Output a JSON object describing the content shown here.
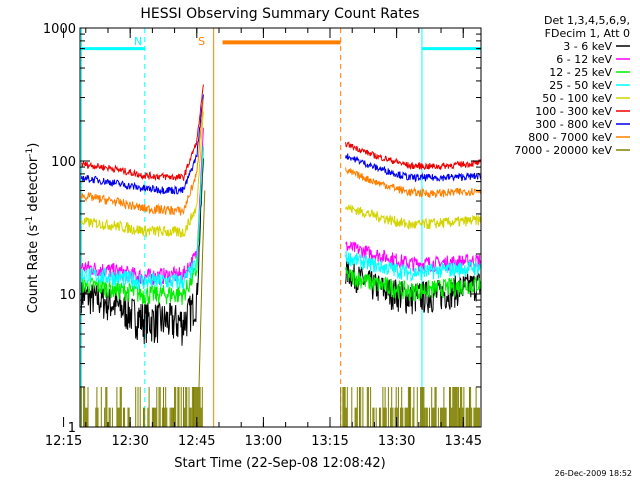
{
  "chart_data": {
    "type": "line",
    "title": "HESSI Observing Summary Count Rates",
    "xlabel": "Start Time (22-Sep-08 12:08:42)",
    "ylabel_main": "Count Rate (s",
    "ylabel_sup1": "-1",
    "ylabel_mid": " detector",
    "ylabel_sup2": "-1",
    "ylabel_end": ")",
    "yscale": "log",
    "ylim": [
      1,
      1000
    ],
    "xlim_minutes": [
      738.7,
      829
    ],
    "y_ticks": [
      {
        "value": 1,
        "label": "1"
      },
      {
        "value": 10,
        "label": "10"
      },
      {
        "value": 100,
        "label": "100"
      },
      {
        "value": 1000,
        "label": "1000"
      }
    ],
    "x_ticks": [
      {
        "minutes": 735,
        "label": "12:15"
      },
      {
        "minutes": 750,
        "label": "12:30"
      },
      {
        "minutes": 765,
        "label": "12:45"
      },
      {
        "minutes": 780,
        "label": "13:00"
      },
      {
        "minutes": 795,
        "label": "13:15"
      },
      {
        "minutes": 810,
        "label": "13:30"
      },
      {
        "minutes": 825,
        "label": "13:45"
      }
    ],
    "legend": {
      "placement": "right",
      "header": [
        "Det 1,3,4,5,6,9,",
        "FDecim 1, Att 0"
      ],
      "entries": [
        {
          "label": "3 - 6 keV",
          "color": "#000000"
        },
        {
          "label": "6 - 12 keV",
          "color": "#ff00ff"
        },
        {
          "label": "12 - 25 keV",
          "color": "#00ee00"
        },
        {
          "label": "25 - 50 keV",
          "color": "#00ffff"
        },
        {
          "label": "50 - 100 keV",
          "color": "#d4d400"
        },
        {
          "label": "100 - 300 keV",
          "color": "#ee0000"
        },
        {
          "label": "300 - 800 keV",
          "color": "#0000ee"
        },
        {
          "label": "800 - 7000 keV",
          "color": "#ff8000"
        },
        {
          "label": "7000 - 20000 keV",
          "color": "#808000"
        }
      ]
    },
    "annotations": [
      {
        "text": "N",
        "minutes": 751.8,
        "color": "#00ffff"
      },
      {
        "text": "S",
        "minutes": 766.1,
        "color": "#ff8000"
      }
    ],
    "night_bars": [
      {
        "from": 738.7,
        "to": 753.3,
        "value": 700,
        "color": "#00ffff"
      },
      {
        "from": 815.7,
        "to": 829,
        "value": 700,
        "color": "#00ffff"
      }
    ],
    "saa_bars": [
      {
        "from": 770.8,
        "to": 797.4,
        "value": 780,
        "color": "#ff8000"
      }
    ],
    "vertical_markers": [
      {
        "minutes": 739,
        "color": "#00ffff",
        "style": "solid"
      },
      {
        "minutes": 753.3,
        "color": "#00ffff",
        "style": "dashed"
      },
      {
        "minutes": 768.8,
        "color": "#ff8000",
        "style": "solid"
      },
      {
        "minutes": 797.4,
        "color": "#ff8000",
        "style": "dashed"
      },
      {
        "minutes": 815.7,
        "color": "#00ffff",
        "style": "solid"
      },
      {
        "minutes": 829,
        "color": "#00ffff",
        "style": "dashed"
      }
    ],
    "series": [
      {
        "name": "3 - 6 keV",
        "color": "#000000",
        "pre_flare": [
          [
            739,
            10
          ],
          [
            746,
            8.5
          ],
          [
            753,
            6.5
          ],
          [
            762,
            6.2
          ],
          [
            765,
            9
          ],
          [
            766.5,
            110
          ]
        ],
        "post_flare": [
          [
            798.5,
            15
          ],
          [
            805,
            11.5
          ],
          [
            813,
            9.5
          ],
          [
            819,
            10
          ],
          [
            829,
            12
          ]
        ]
      },
      {
        "name": "6 - 12 keV",
        "color": "#ff00ff",
        "pre_flare": [
          [
            739,
            16
          ],
          [
            746,
            15
          ],
          [
            753,
            13.5
          ],
          [
            762,
            14
          ],
          [
            765,
            20
          ],
          [
            766.5,
            180
          ]
        ],
        "post_flare": [
          [
            798.5,
            23
          ],
          [
            805,
            20
          ],
          [
            813,
            17
          ],
          [
            819,
            17
          ],
          [
            829,
            18
          ]
        ]
      },
      {
        "name": "12 - 25 keV",
        "color": "#00ee00",
        "pre_flare": [
          [
            739,
            12
          ],
          [
            746,
            11
          ],
          [
            753,
            10
          ],
          [
            762,
            10
          ],
          [
            765,
            15
          ],
          [
            766.5,
            130
          ]
        ],
        "post_flare": [
          [
            798.5,
            14
          ],
          [
            805,
            12
          ],
          [
            813,
            10.5
          ],
          [
            819,
            11
          ],
          [
            829,
            12
          ]
        ]
      },
      {
        "name": "25 - 50 keV",
        "color": "#00ffff",
        "pre_flare": [
          [
            739,
            14
          ],
          [
            746,
            13.5
          ],
          [
            753,
            12.5
          ],
          [
            762,
            12.5
          ],
          [
            765,
            17
          ],
          [
            766.5,
            140
          ]
        ],
        "post_flare": [
          [
            798.5,
            19
          ],
          [
            805,
            16.5
          ],
          [
            813,
            14.5
          ],
          [
            819,
            15
          ],
          [
            829,
            16
          ]
        ]
      },
      {
        "name": "50 - 100 keV",
        "color": "#d4d400",
        "pre_flare": [
          [
            739,
            35
          ],
          [
            746,
            33
          ],
          [
            753,
            30
          ],
          [
            762,
            29
          ],
          [
            765,
            45
          ],
          [
            766.5,
            250
          ]
        ],
        "post_flare": [
          [
            798.5,
            45
          ],
          [
            805,
            39
          ],
          [
            813,
            33
          ],
          [
            819,
            34
          ],
          [
            829,
            36
          ]
        ]
      },
      {
        "name": "100 - 300 keV",
        "color": "#ee0000",
        "pre_flare": [
          [
            739,
            95
          ],
          [
            746,
            88
          ],
          [
            753,
            78
          ],
          [
            762,
            75
          ],
          [
            765,
            140
          ],
          [
            766.5,
            370
          ]
        ],
        "post_flare": [
          [
            798.5,
            135
          ],
          [
            805,
            110
          ],
          [
            813,
            92
          ],
          [
            819,
            91
          ],
          [
            829,
            97
          ]
        ]
      },
      {
        "name": "300 - 800 keV",
        "color": "#0000ee",
        "pre_flare": [
          [
            739,
            75
          ],
          [
            746,
            69
          ],
          [
            753,
            62
          ],
          [
            762,
            60
          ],
          [
            765,
            110
          ],
          [
            766.5,
            320
          ]
        ],
        "post_flare": [
          [
            798.5,
            110
          ],
          [
            805,
            90
          ],
          [
            813,
            75
          ],
          [
            819,
            75
          ],
          [
            829,
            77
          ]
        ]
      },
      {
        "name": "800 - 7000 keV",
        "color": "#ff8000",
        "pre_flare": [
          [
            739,
            55
          ],
          [
            746,
            50
          ],
          [
            753,
            44
          ],
          [
            762,
            42
          ],
          [
            765,
            80
          ],
          [
            766.5,
            300
          ]
        ],
        "post_flare": [
          [
            798.5,
            85
          ],
          [
            805,
            70
          ],
          [
            813,
            58
          ],
          [
            819,
            57
          ],
          [
            829,
            60
          ]
        ]
      },
      {
        "name": "7000 - 20000 keV",
        "color": "#808000",
        "pre_flare": [
          [
            739,
            1.5
          ],
          [
            746,
            1.4
          ],
          [
            753,
            1.4
          ],
          [
            762,
            1.3
          ],
          [
            765,
            8
          ],
          [
            766.5,
            60
          ]
        ],
        "post_flare": [
          [
            797.4,
            1.5
          ],
          [
            799.5,
            1.4
          ],
          [
            812,
            1.3
          ],
          [
            819,
            1.4
          ],
          [
            829,
            1.5
          ]
        ]
      }
    ]
  },
  "footer": {
    "date_stamp": "26-Dec-2009 18:52"
  }
}
